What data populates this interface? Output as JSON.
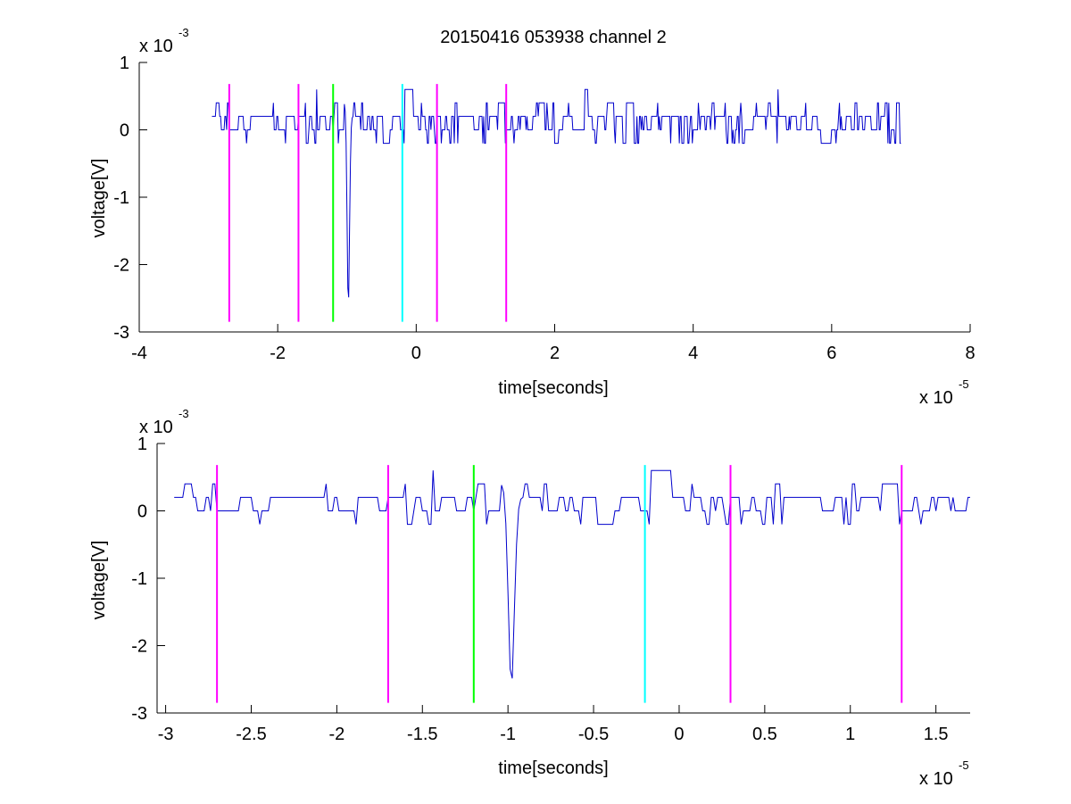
{
  "figure_title": "20150416 053938 channel 2",
  "colors": {
    "signal": "#0000cc",
    "magenta": "#ff00ff",
    "green": "#00ff00",
    "cyan": "#00ffff",
    "axes": "#000000"
  },
  "chart_data": [
    {
      "type": "line",
      "title": "20150416 053938 channel 2",
      "xlabel": "time[seconds]",
      "ylabel": "voltage[V]",
      "x_multiplier_base": "x 10",
      "x_multiplier_exp": "-5",
      "y_multiplier_base": "x 10",
      "y_multiplier_exp": "-3",
      "xlim": [
        -4,
        8
      ],
      "ylim": [
        -3,
        1
      ],
      "xticks": [
        -4,
        -2,
        0,
        2,
        4,
        6,
        8
      ],
      "xtick_labels": [
        "-4",
        "-2",
        "0",
        "2",
        "4",
        "6",
        "8"
      ],
      "yticks": [
        -3,
        -2,
        -1,
        0,
        1
      ],
      "ytick_labels": [
        "-3",
        "-2",
        "-1",
        "0",
        "1"
      ],
      "grid": false,
      "series": [
        {
          "color": "blue",
          "x_range": [
            -2.95,
            7.0
          ],
          "baseline": 0.1,
          "noise_amplitude": 0.2,
          "spike": {
            "x": -0.98,
            "min_value": -2.6
          }
        }
      ],
      "vertical_markers": [
        {
          "x": -2.7,
          "color": "magenta",
          "y_top": 0.68,
          "y_bottom": -2.85
        },
        {
          "x": -1.7,
          "color": "magenta",
          "y_top": 0.68,
          "y_bottom": -2.85
        },
        {
          "x": -1.2,
          "color": "green",
          "y_top": 0.68,
          "y_bottom": -2.85
        },
        {
          "x": -0.2,
          "color": "cyan",
          "y_top": 0.68,
          "y_bottom": -2.85
        },
        {
          "x": 0.3,
          "color": "magenta",
          "y_top": 0.68,
          "y_bottom": -2.85
        },
        {
          "x": 1.3,
          "color": "magenta",
          "y_top": 0.68,
          "y_bottom": -2.85
        }
      ]
    },
    {
      "type": "line",
      "title": "",
      "xlabel": "time[seconds]",
      "ylabel": "voltage[V]",
      "x_multiplier_base": "x 10",
      "x_multiplier_exp": "-5",
      "y_multiplier_base": "x 10",
      "y_multiplier_exp": "-3",
      "xlim": [
        -3.05,
        1.7
      ],
      "ylim": [
        -3,
        1
      ],
      "xticks": [
        -3,
        -2.5,
        -2,
        -1.5,
        -1,
        -0.5,
        0,
        0.5,
        1,
        1.5
      ],
      "xtick_labels": [
        "-3",
        "-2.5",
        "-2",
        "-1.5",
        "-1",
        "-0.5",
        "0",
        "0.5",
        "1",
        "1.5"
      ],
      "yticks": [
        -3,
        -2,
        -1,
        0,
        1
      ],
      "ytick_labels": [
        "-3",
        "-2",
        "-1",
        "0",
        "1"
      ],
      "grid": false,
      "series": [
        {
          "color": "blue",
          "x_range": [
            -2.95,
            1.7
          ],
          "baseline": 0.1,
          "noise_amplitude": 0.2,
          "spike": {
            "x": -0.98,
            "min_value": -2.6
          }
        }
      ],
      "vertical_markers": [
        {
          "x": -2.7,
          "color": "magenta",
          "y_top": 0.68,
          "y_bottom": -2.85
        },
        {
          "x": -1.7,
          "color": "magenta",
          "y_top": 0.68,
          "y_bottom": -2.85
        },
        {
          "x": -1.2,
          "color": "green",
          "y_top": 0.68,
          "y_bottom": -2.85
        },
        {
          "x": -0.2,
          "color": "cyan",
          "y_top": 0.68,
          "y_bottom": -2.85
        },
        {
          "x": 0.3,
          "color": "magenta",
          "y_top": 0.68,
          "y_bottom": -2.85
        },
        {
          "x": 1.3,
          "color": "magenta",
          "y_top": 0.68,
          "y_bottom": -2.85
        }
      ]
    }
  ]
}
